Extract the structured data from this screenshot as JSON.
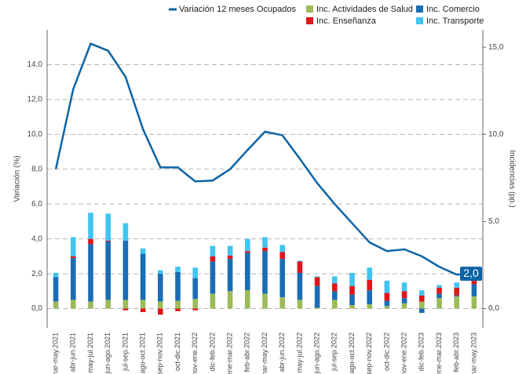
{
  "chart_data": {
    "type": "bar-line",
    "ylabel": "Variación (%)",
    "y2label": "Incidencias (pp.)",
    "categories": [
      "mar-may.2021",
      "abr-jun.2021",
      "may-jul.2021",
      "jun-ago.2021",
      "jul-sep.2021",
      "ago-oct.2021",
      "sep-nov.2021",
      "oct-dic.2021",
      "nov-ene.2022",
      "dic-feb.2022",
      "ene-mar.2022",
      "feb-abr.2022",
      "mar-may.2022",
      "abr-jun.2022",
      "may-jul.2022",
      "jun-ago.2022",
      "jul-sep.2022",
      "ago-oct.2022",
      "sep-nov.2022",
      "oct-dic.2022",
      "nov-ene.2022",
      "dic-feb.2023",
      "ene-mar.2023",
      "feb-abr.2023",
      "mar-may.2023"
    ],
    "series": [
      {
        "name": "Variación 12 meses Ocupados",
        "type": "line",
        "color": "#0b64a6",
        "values": [
          8.0,
          12.6,
          15.2,
          14.8,
          13.3,
          10.3,
          8.1,
          8.1,
          7.3,
          7.35,
          8.0,
          9.1,
          10.15,
          9.95,
          8.6,
          7.2,
          6.0,
          4.9,
          3.8,
          3.3,
          3.4,
          3.0,
          2.4,
          1.95,
          2.0
        ],
        "value_labels": [
          null,
          null,
          null,
          null,
          null,
          null,
          null,
          null,
          null,
          null,
          null,
          null,
          null,
          null,
          null,
          null,
          null,
          null,
          null,
          null,
          null,
          null,
          null,
          null,
          "2,0"
        ]
      },
      {
        "name": "Inc. Actividades de Salud",
        "type": "bar",
        "axis": "y2",
        "color": "#9bbb59",
        "values": [
          0.4,
          0.5,
          0.4,
          0.5,
          0.5,
          0.5,
          0.4,
          0.45,
          0.55,
          0.85,
          1.0,
          1.05,
          0.85,
          0.65,
          0.5,
          0.05,
          0.5,
          0.2,
          0.25,
          0.15,
          0.3,
          0.4,
          0.6,
          0.7,
          0.7
        ]
      },
      {
        "name": "Inc. Comercio",
        "type": "bar",
        "axis": "y2",
        "color": "#1a6db5",
        "values": [
          1.4,
          2.4,
          3.3,
          3.35,
          3.4,
          2.65,
          1.6,
          1.65,
          1.2,
          1.85,
          1.85,
          2.15,
          2.45,
          2.2,
          1.55,
          1.25,
          0.5,
          0.6,
          0.8,
          0.3,
          0.3,
          -0.25,
          0.25,
          0.05,
          0.7
        ]
      },
      {
        "name": "Inc. Enseñanza",
        "type": "bar",
        "axis": "y2",
        "color": "#e0161b",
        "values": [
          0.0,
          0.1,
          0.3,
          0.05,
          -0.1,
          -0.2,
          -0.35,
          -0.15,
          -0.1,
          0.3,
          0.2,
          0.1,
          0.2,
          0.4,
          0.65,
          0.5,
          0.45,
          0.5,
          0.6,
          0.45,
          0.4,
          0.35,
          0.35,
          0.45,
          0.4
        ]
      },
      {
        "name": "Inc. Transporte",
        "type": "bar",
        "axis": "y2",
        "color": "#41c4f0",
        "values": [
          0.25,
          1.1,
          1.5,
          1.55,
          1.0,
          0.3,
          0.2,
          0.3,
          0.6,
          0.6,
          0.55,
          0.7,
          0.6,
          0.4,
          0.05,
          0.05,
          0.4,
          0.75,
          0.7,
          0.7,
          0.5,
          0.3,
          0.15,
          0.3,
          0.5
        ]
      }
    ],
    "ylim": [
      -1.1,
      16
    ],
    "yticks": [
      {
        "value": 0,
        "label": "0,0"
      },
      {
        "value": 2,
        "label": "2,0"
      },
      {
        "value": 4,
        "label": "4,0"
      },
      {
        "value": 6,
        "label": "6,0"
      },
      {
        "value": 8,
        "label": "8,0"
      },
      {
        "value": 10,
        "label": "10,0"
      },
      {
        "value": 12,
        "label": "12,0"
      },
      {
        "value": 14,
        "label": "14,0"
      }
    ],
    "y2lim": [
      -1.1,
      16
    ],
    "y2ticks": [
      {
        "value": 0,
        "label": "0,0"
      },
      {
        "value": 5,
        "label": "5,0"
      },
      {
        "value": 10,
        "label": "10,0"
      },
      {
        "value": 15,
        "label": "15,0"
      }
    ],
    "grid": true
  }
}
